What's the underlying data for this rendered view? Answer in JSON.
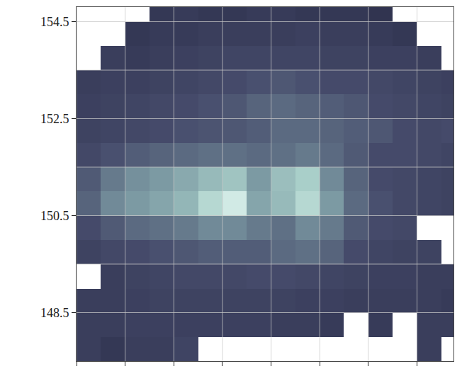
{
  "chart_data": {
    "type": "heatmap",
    "x": [
      0.25,
      0.75,
      1.25,
      1.75,
      2.25,
      2.75,
      3.25,
      3.75,
      4.25,
      4.75,
      5.25,
      5.75,
      6.25,
      6.75,
      7.25,
      7.75
    ],
    "y": [
      147.75,
      148.25,
      148.75,
      149.25,
      149.75,
      150.25,
      150.75,
      151.25,
      151.75,
      152.25,
      152.75,
      153.25,
      153.75,
      154.25,
      154.75
    ],
    "z": [
      [
        0.2,
        0.15,
        0.2,
        0.2,
        0.25,
        null,
        null,
        null,
        null,
        null,
        null,
        null,
        null,
        null,
        0.2,
        null
      ],
      [
        0.2,
        0.2,
        0.22,
        0.22,
        0.22,
        0.22,
        0.22,
        0.22,
        0.2,
        0.2,
        0.18,
        null,
        0.18,
        null,
        0.2,
        0.2
      ],
      [
        0.2,
        0.2,
        0.22,
        0.24,
        0.24,
        0.24,
        0.24,
        0.24,
        0.24,
        0.22,
        0.22,
        0.2,
        0.2,
        0.2,
        0.2,
        0.18
      ],
      [
        null,
        0.2,
        0.24,
        0.26,
        0.28,
        0.28,
        0.28,
        0.3,
        0.3,
        0.28,
        0.26,
        0.24,
        0.22,
        0.22,
        0.2,
        0.2
      ],
      [
        0.24,
        0.28,
        0.3,
        0.32,
        0.34,
        0.36,
        0.36,
        0.36,
        0.4,
        0.42,
        0.38,
        0.3,
        0.26,
        0.24,
        0.24,
        null
      ],
      [
        0.3,
        0.35,
        0.4,
        0.42,
        0.45,
        0.5,
        0.5,
        0.45,
        0.42,
        0.5,
        0.45,
        0.35,
        0.3,
        0.28,
        null,
        null
      ],
      [
        0.38,
        0.5,
        0.55,
        0.6,
        0.68,
        0.85,
        0.95,
        0.6,
        0.7,
        0.85,
        0.55,
        0.4,
        0.32,
        0.28,
        0.26,
        0.24
      ],
      [
        0.35,
        0.45,
        0.52,
        0.55,
        0.62,
        0.7,
        0.75,
        0.55,
        0.72,
        0.8,
        0.5,
        0.38,
        0.3,
        0.28,
        0.26,
        0.24
      ],
      [
        0.28,
        0.32,
        0.36,
        0.38,
        0.4,
        0.42,
        0.42,
        0.4,
        0.42,
        0.45,
        0.4,
        0.35,
        0.3,
        0.3,
        0.28,
        0.26
      ],
      [
        0.24,
        0.26,
        0.28,
        0.3,
        0.32,
        0.33,
        0.34,
        0.36,
        0.4,
        0.4,
        0.38,
        0.36,
        0.34,
        0.3,
        0.28,
        0.3
      ],
      [
        0.22,
        0.24,
        0.26,
        0.28,
        0.3,
        0.32,
        0.34,
        0.38,
        0.4,
        0.38,
        0.36,
        0.34,
        0.3,
        0.28,
        0.26,
        0.24
      ],
      [
        0.2,
        0.22,
        0.22,
        0.24,
        0.26,
        0.28,
        0.3,
        0.32,
        0.34,
        0.32,
        0.3,
        0.3,
        0.28,
        0.26,
        0.24,
        0.22
      ],
      [
        null,
        0.2,
        0.18,
        0.2,
        0.22,
        0.24,
        0.26,
        0.26,
        0.26,
        0.26,
        0.24,
        0.24,
        0.22,
        0.22,
        0.2,
        null
      ],
      [
        null,
        null,
        0.15,
        0.18,
        0.18,
        0.2,
        0.2,
        0.2,
        0.2,
        0.22,
        0.2,
        0.2,
        0.18,
        0.15,
        null,
        null
      ],
      [
        null,
        null,
        null,
        0.15,
        0.18,
        0.15,
        0.15,
        0.18,
        0.18,
        0.15,
        0.15,
        0.15,
        0.12,
        null,
        null,
        null
      ]
    ],
    "zlim": [
      0,
      1
    ],
    "xlim": [
      0,
      7.75
    ],
    "ylim": [
      147.5,
      154.8
    ],
    "xticks": [
      0,
      1,
      2,
      3,
      4,
      5,
      6,
      7
    ],
    "yticks": [
      148.5,
      150.5,
      152.5,
      154.5
    ],
    "tick_labels": "y",
    "grid": true
  }
}
